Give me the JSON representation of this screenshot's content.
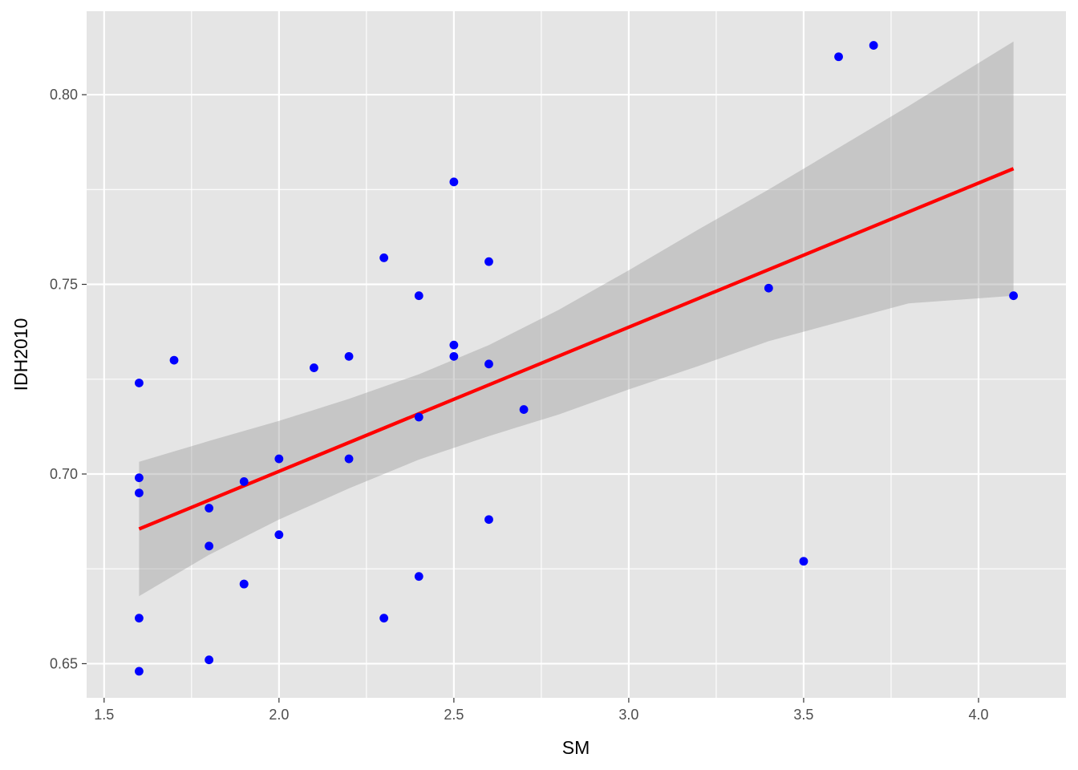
{
  "chart_data": {
    "type": "scatter",
    "xlabel": "SM",
    "ylabel": "IDH2010",
    "xlim": [
      1.45,
      4.25
    ],
    "ylim": [
      0.641,
      0.822
    ],
    "x_ticks": [
      1.5,
      2.0,
      2.5,
      3.0,
      3.5,
      4.0
    ],
    "x_tick_labels": [
      "1.5",
      "2.0",
      "2.5",
      "3.0",
      "3.5",
      "4.0"
    ],
    "y_ticks": [
      0.65,
      0.7,
      0.75,
      0.8
    ],
    "y_tick_labels": [
      "0.65",
      "0.70",
      "0.75",
      "0.80"
    ],
    "grid": true,
    "colors": {
      "panel": "#e5e5e5",
      "grid": "#ffffff",
      "points": "#0000ff",
      "fit_line": "#ff0000",
      "confidence_band": "#999999",
      "axis_text": "#4d4d4d",
      "tick": "#333333"
    },
    "points": [
      {
        "x": 1.6,
        "y": 0.724
      },
      {
        "x": 1.6,
        "y": 0.699
      },
      {
        "x": 1.6,
        "y": 0.695
      },
      {
        "x": 1.6,
        "y": 0.662
      },
      {
        "x": 1.6,
        "y": 0.648
      },
      {
        "x": 1.7,
        "y": 0.73
      },
      {
        "x": 1.8,
        "y": 0.691
      },
      {
        "x": 1.8,
        "y": 0.681
      },
      {
        "x": 1.8,
        "y": 0.651
      },
      {
        "x": 1.9,
        "y": 0.698
      },
      {
        "x": 1.9,
        "y": 0.671
      },
      {
        "x": 1.9,
        "y": 0.671
      },
      {
        "x": 2.0,
        "y": 0.704
      },
      {
        "x": 2.0,
        "y": 0.684
      },
      {
        "x": 2.1,
        "y": 0.728
      },
      {
        "x": 2.2,
        "y": 0.731
      },
      {
        "x": 2.2,
        "y": 0.704
      },
      {
        "x": 2.3,
        "y": 0.757
      },
      {
        "x": 2.3,
        "y": 0.662
      },
      {
        "x": 2.4,
        "y": 0.747
      },
      {
        "x": 2.4,
        "y": 0.715
      },
      {
        "x": 2.4,
        "y": 0.673
      },
      {
        "x": 2.5,
        "y": 0.777
      },
      {
        "x": 2.5,
        "y": 0.734
      },
      {
        "x": 2.5,
        "y": 0.731
      },
      {
        "x": 2.6,
        "y": 0.756
      },
      {
        "x": 2.6,
        "y": 0.729
      },
      {
        "x": 2.6,
        "y": 0.688
      },
      {
        "x": 2.7,
        "y": 0.717
      },
      {
        "x": 3.4,
        "y": 0.749
      },
      {
        "x": 3.5,
        "y": 0.677
      },
      {
        "x": 3.6,
        "y": 0.81
      },
      {
        "x": 3.7,
        "y": 0.813
      },
      {
        "x": 4.1,
        "y": 0.747
      }
    ],
    "fit_line": {
      "x": [
        1.6,
        4.1
      ],
      "y": [
        0.6855,
        0.7805
      ]
    },
    "confidence_band": {
      "x": [
        1.6,
        1.8,
        2.0,
        2.2,
        2.4,
        2.6,
        2.8,
        3.0,
        3.2,
        3.4,
        3.6,
        3.8,
        4.1
      ],
      "upper": [
        0.7032,
        0.7087,
        0.714,
        0.7198,
        0.7263,
        0.734,
        0.7433,
        0.7537,
        0.7645,
        0.775,
        0.786,
        0.797,
        0.814
      ],
      "lower": [
        0.6678,
        0.6787,
        0.688,
        0.6962,
        0.7038,
        0.71,
        0.7157,
        0.7223,
        0.7285,
        0.735,
        0.74,
        0.745,
        0.747
      ]
    }
  }
}
